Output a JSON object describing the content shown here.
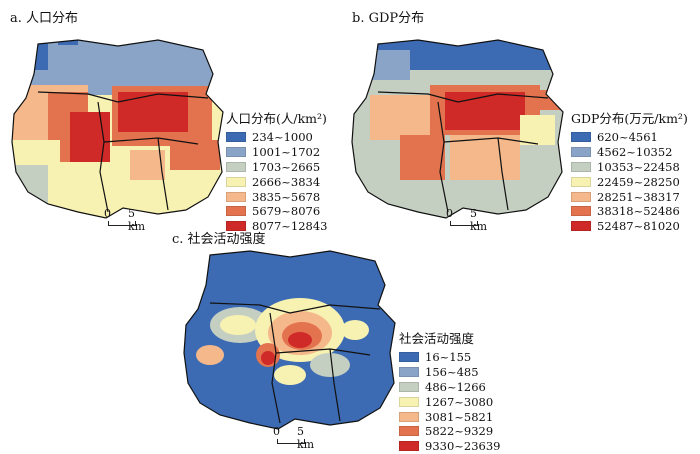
{
  "panels": [
    {
      "title": "a. 人口分布",
      "legend_title": "人口分布(人/km²)",
      "classes": [
        {
          "label": "234~1000",
          "color": "#3d6bb3"
        },
        {
          "label": "1001~1702",
          "color": "#8aa4c7"
        },
        {
          "label": "1703~2665",
          "color": "#c4cfc1"
        },
        {
          "label": "2666~3834",
          "color": "#f7f1b2"
        },
        {
          "label": "3835~5678",
          "color": "#f5b88a"
        },
        {
          "label": "5679~8076",
          "color": "#e3724f"
        },
        {
          "label": "8077~12843",
          "color": "#cf2a27"
        }
      ],
      "scale": {
        "zero": "0",
        "five": "5 km"
      }
    },
    {
      "title": "b. GDP分布",
      "legend_title": "GDP分布(万元/km²)",
      "classes": [
        {
          "label": "620~4561",
          "color": "#3d6bb3"
        },
        {
          "label": "4562~10352",
          "color": "#8aa4c7"
        },
        {
          "label": "10353~22458",
          "color": "#c4cfc1"
        },
        {
          "label": "22459~28250",
          "color": "#f7f1b2"
        },
        {
          "label": "28251~38317",
          "color": "#f5b88a"
        },
        {
          "label": "38318~52486",
          "color": "#e3724f"
        },
        {
          "label": "52487~81020",
          "color": "#cf2a27"
        }
      ],
      "scale": {
        "zero": "0",
        "five": "5 km"
      }
    },
    {
      "title": "c. 社会活动强度",
      "legend_title": "社会活动强度",
      "classes": [
        {
          "label": "16~155",
          "color": "#3d6bb3"
        },
        {
          "label": "156~485",
          "color": "#8aa4c7"
        },
        {
          "label": "486~1266",
          "color": "#c4cfc1"
        },
        {
          "label": "1267~3080",
          "color": "#f7f1b2"
        },
        {
          "label": "3081~5821",
          "color": "#f5b88a"
        },
        {
          "label": "5822~9329",
          "color": "#e3724f"
        },
        {
          "label": "9330~23639",
          "color": "#cf2a27"
        }
      ],
      "scale": {
        "zero": "0",
        "five": "5 km"
      }
    }
  ]
}
